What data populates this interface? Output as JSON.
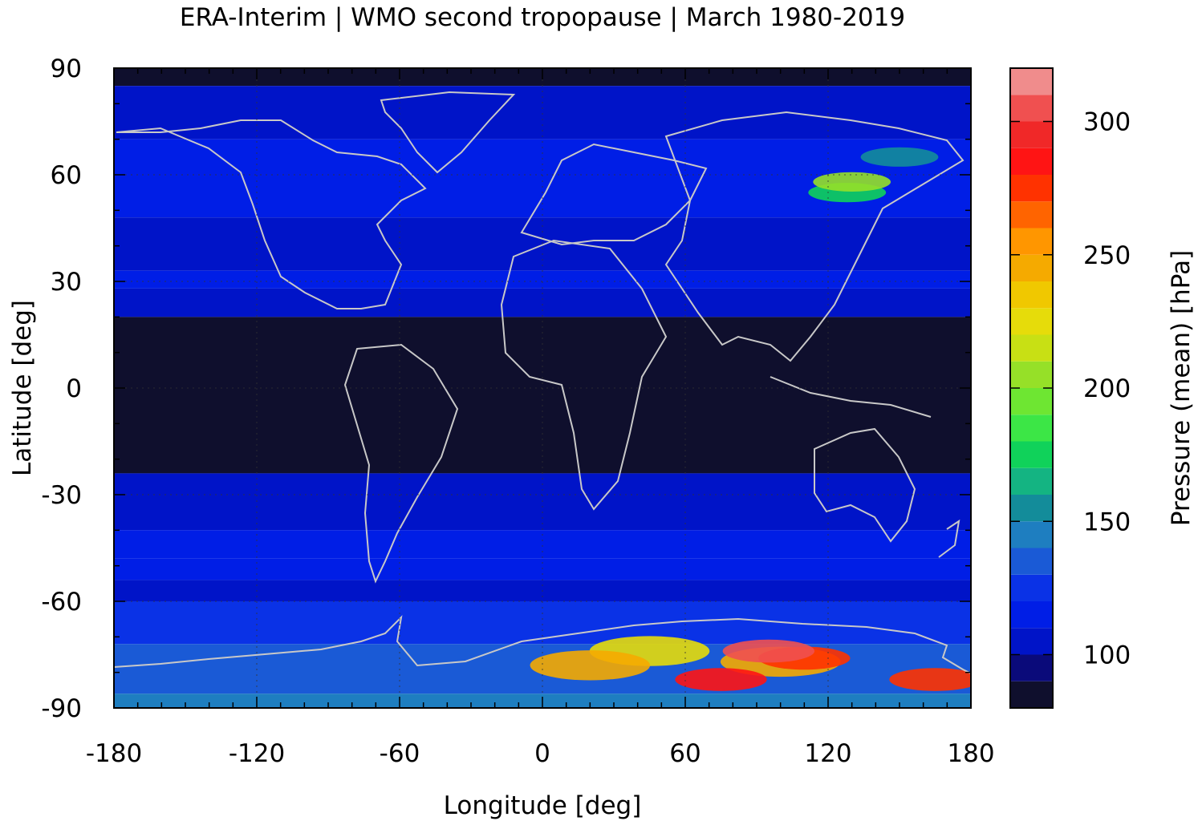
{
  "chart_data": {
    "type": "heatmap",
    "title": "ERA-Interim | WMO second tropopause | March 1980-2019",
    "xlabel": "Longitude [deg]",
    "ylabel": "Latitude [deg]",
    "xlim": [
      -180,
      180
    ],
    "ylim": [
      -90,
      90
    ],
    "x_ticks": [
      "-180",
      "-120",
      "-60",
      "0",
      "60",
      "120",
      "180"
    ],
    "y_ticks": [
      "90",
      "60",
      "30",
      "0",
      "-30",
      "-60",
      "-90"
    ],
    "x_tick_values": [
      -180,
      -120,
      -60,
      0,
      60,
      120,
      180
    ],
    "y_tick_values": [
      90,
      60,
      30,
      0,
      -30,
      -60,
      -90
    ],
    "grid": true,
    "coastlines": true,
    "colorbar": {
      "label": "Pressure (mean) [hPa]",
      "range": [
        80,
        320
      ],
      "ticks": [
        "100",
        "150",
        "200",
        "250",
        "300"
      ],
      "tick_values": [
        100,
        150,
        200,
        250,
        300
      ],
      "levels": [
        80,
        90,
        100,
        110,
        120,
        130,
        140,
        150,
        160,
        170,
        180,
        190,
        200,
        210,
        220,
        230,
        240,
        250,
        260,
        270,
        280,
        290,
        300,
        310,
        320
      ],
      "colors": [
        "#0f0f2d",
        "#0a0a7a",
        "#0014c8",
        "#001ee6",
        "#0a32e6",
        "#1a5ad6",
        "#1e7ec0",
        "#138c9a",
        "#14b482",
        "#10d25a",
        "#3ce646",
        "#6ee632",
        "#96e028",
        "#c8e014",
        "#e6dc0a",
        "#f0c800",
        "#f5aa00",
        "#ff9600",
        "#ff6400",
        "#ff3200",
        "#ff1414",
        "#f02828",
        "#f05050",
        "#f08c8c",
        "#ffcccc"
      ]
    },
    "bands": [
      {
        "lat_range": [
          85,
          90
        ],
        "pressure": 85
      },
      {
        "lat_range": [
          70,
          85
        ],
        "pressure": 105
      },
      {
        "lat_range": [
          48,
          70
        ],
        "pressure": 112
      },
      {
        "lat_range": [
          33,
          48
        ],
        "pressure": 106
      },
      {
        "lat_range": [
          28,
          33
        ],
        "pressure": 118
      },
      {
        "lat_range": [
          20,
          28
        ],
        "pressure": 108
      },
      {
        "lat_range": [
          -24,
          20
        ],
        "pressure": 85
      },
      {
        "lat_range": [
          -30,
          -24
        ],
        "pressure": 108
      },
      {
        "lat_range": [
          -40,
          -30
        ],
        "pressure": 105
      },
      {
        "lat_range": [
          -48,
          -40
        ],
        "pressure": 118
      },
      {
        "lat_range": [
          -54,
          -48
        ],
        "pressure": 112
      },
      {
        "lat_range": [
          -60,
          -54
        ],
        "pressure": 108
      },
      {
        "lat_range": [
          -72,
          -60
        ],
        "pressure": 128
      },
      {
        "lat_range": [
          -86,
          -72
        ],
        "pressure": 135
      },
      {
        "lat_range": [
          -90,
          -86
        ],
        "pressure": 145
      }
    ],
    "hotspots": [
      {
        "lon": 100,
        "lat": -77,
        "pressure": 240
      },
      {
        "lon": 75,
        "lat": -82,
        "pressure": 280
      },
      {
        "lon": 110,
        "lat": -76,
        "pressure": 270
      },
      {
        "lon": 95,
        "lat": -74,
        "pressure": 300
      },
      {
        "lon": 45,
        "lat": -74,
        "pressure": 220
      },
      {
        "lon": 20,
        "lat": -78,
        "pressure": 240
      },
      {
        "lon": 165,
        "lat": -82,
        "pressure": 270
      },
      {
        "lon": 128,
        "lat": 55,
        "pressure": 170
      },
      {
        "lon": 130,
        "lat": 58,
        "pressure": 200
      },
      {
        "lon": 150,
        "lat": 65,
        "pressure": 150
      }
    ]
  }
}
